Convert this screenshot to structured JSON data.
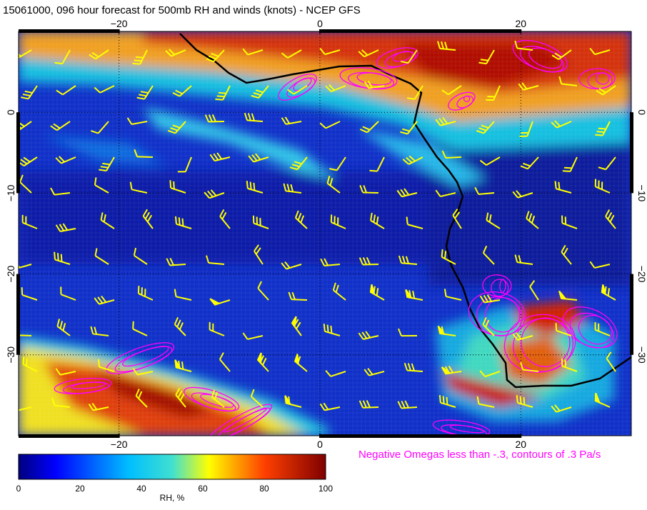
{
  "title": "15061000, 096 hour forecast for 500mb RH and winds (knots) - NCEP GFS",
  "annotation": "Negative Omegas less than -.3, contours of .3 Pa/s",
  "map": {
    "lon_range": [
      -30,
      31
    ],
    "lat_range": [
      -40,
      10
    ],
    "lon_ticks": [
      {
        "value": -20,
        "label": "−20"
      },
      {
        "value": 0,
        "label": "0"
      },
      {
        "value": 20,
        "label": "20"
      }
    ],
    "lat_ticks": [
      {
        "value": 0,
        "label": "0"
      },
      {
        "value": -10,
        "label": "−10"
      },
      {
        "value": -20,
        "label": "−20"
      },
      {
        "value": -30,
        "label": "−30"
      }
    ],
    "gridlines": "dotted",
    "field": "500mb relative humidity",
    "overlays": [
      "wind barbs (yellow)",
      "negative omega contours (magenta)",
      "coastline (black)"
    ],
    "colors": {
      "wind_barbs": "#ffff00",
      "omega_contours": "#ff00ff",
      "coastline": "#000000"
    }
  },
  "colorbar": {
    "label": "RH, %",
    "ticks": [
      "0",
      "20",
      "40",
      "60",
      "80",
      "100"
    ],
    "range": [
      0,
      100
    ],
    "colormap": "jet"
  }
}
